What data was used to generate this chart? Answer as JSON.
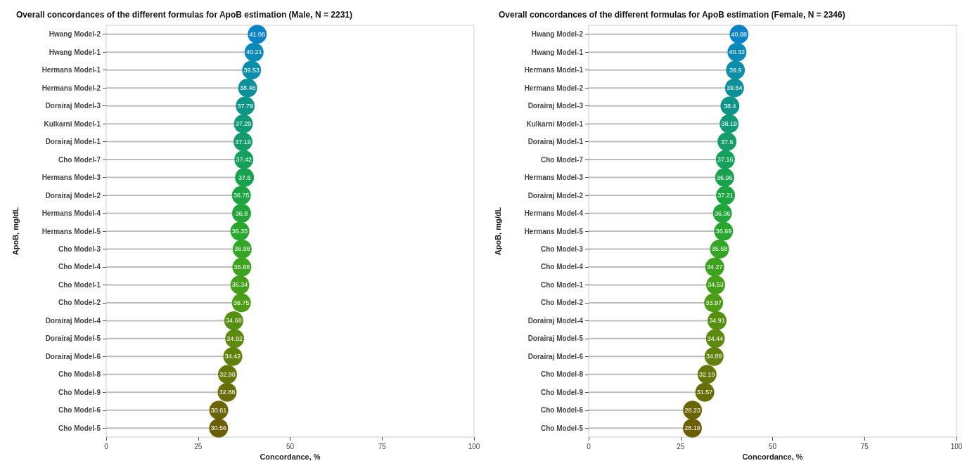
{
  "chart_data": [
    {
      "type": "lollipop",
      "orientation": "horizontal",
      "title": "Overall concordances of the different formulas for ApoB estimation (Male, N = 2231)",
      "xlabel": "Concordance, %",
      "ylabel": "ApoB, mg/dL",
      "marker": "circle",
      "data_labels": true,
      "xlim": [
        0,
        100
      ],
      "xticks": [
        0,
        25,
        50,
        75,
        100
      ],
      "categories": [
        "Hwang Model-2",
        "Hwang Model-1",
        "Hermans Model-1",
        "Hermans Model-2",
        "Dorairaj Model-3",
        "Kulkarni Model-1",
        "Dorairaj Model-1",
        "Cho Model-7",
        "Hermans Model-3",
        "Dorairaj Model-2",
        "Hermans Model-4",
        "Hermans Model-5",
        "Cho Model-3",
        "Cho Model-4",
        "Cho Model-1",
        "Cho Model-2",
        "Dorairaj Model-4",
        "Dorairaj Model-5",
        "Dorairaj Model-6",
        "Cho Model-8",
        "Cho Model-9",
        "Cho Model-6",
        "Cho Model-5"
      ],
      "values": [
        41.06,
        40.21,
        39.53,
        38.46,
        37.79,
        37.29,
        37.19,
        37.42,
        37.6,
        36.75,
        36.8,
        36.35,
        36.98,
        36.88,
        36.34,
        36.75,
        34.68,
        34.92,
        34.42,
        32.98,
        32.88,
        30.61,
        30.56
      ],
      "colors": [
        "#0a84c6",
        "#0a8ab8",
        "#0c8ea8",
        "#0c9198",
        "#0e9588",
        "#109a78",
        "#129d6a",
        "#15a05c",
        "#18a24e",
        "#1ca443",
        "#22a538",
        "#28a62e",
        "#32a624",
        "#3ca31e",
        "#44a01a",
        "#4c9c16",
        "#568f10",
        "#5c890e",
        "#60820c",
        "#66770a",
        "#686f08",
        "#6a6406",
        "#6c5e04"
      ]
    },
    {
      "type": "lollipop",
      "orientation": "horizontal",
      "title": "Overall concordances of the different formulas for ApoB estimation (Female, N = 2346)",
      "xlabel": "Concordance, %",
      "ylabel": "ApoB, mg/dL",
      "marker": "circle",
      "data_labels": true,
      "xlim": [
        0,
        100
      ],
      "xticks": [
        0,
        25,
        50,
        75,
        100
      ],
      "categories": [
        "Hwang Model-2",
        "Hwang Model-1",
        "Hermans Model-1",
        "Hermans Model-2",
        "Dorairaj Model-3",
        "Kulkarni Model-1",
        "Dorairaj Model-1",
        "Cho Model-7",
        "Hermans Model-3",
        "Dorairaj Model-2",
        "Hermans Model-4",
        "Hermans Model-5",
        "Cho Model-3",
        "Cho Model-4",
        "Cho Model-1",
        "Cho Model-2",
        "Dorairaj Model-4",
        "Dorairaj Model-5",
        "Dorairaj Model-6",
        "Cho Model-8",
        "Cho Model-9",
        "Cho Model-6",
        "Cho Model-5"
      ],
      "values": [
        40.88,
        40.32,
        39.9,
        39.64,
        38.4,
        38.19,
        37.6,
        37.16,
        36.96,
        37.21,
        36.36,
        36.69,
        35.58,
        34.27,
        34.53,
        33.97,
        34.91,
        34.44,
        34.09,
        32.19,
        31.57,
        28.23,
        28.19
      ],
      "colors": [
        "#0a84c6",
        "#0a8ab8",
        "#0c8ea8",
        "#0c9198",
        "#0e9588",
        "#109a78",
        "#129d6a",
        "#15a05c",
        "#18a24e",
        "#1ca443",
        "#22a538",
        "#28a62e",
        "#32a624",
        "#3ca31e",
        "#44a01a",
        "#4c9c16",
        "#568f10",
        "#5c890e",
        "#60820c",
        "#66770a",
        "#686f08",
        "#6a6406",
        "#6c5e04"
      ]
    }
  ]
}
